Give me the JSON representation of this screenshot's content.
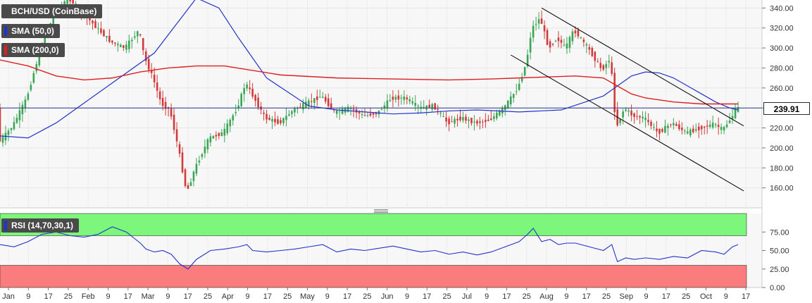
{
  "legend": {
    "title": "BCH/USD (CoinBase)",
    "sma50": "SMA (50,0)",
    "sma200": "SMA (200,0)",
    "rsi": "RSI (14,70,30,1)"
  },
  "colors": {
    "sma50": "#2233cc",
    "sma200": "#dd1f1f",
    "rsi_line": "#2233cc",
    "overbought_zone": "#7cf77c",
    "oversold_zone": "#fa7c7c",
    "up_candle": "#3aa655",
    "down_candle": "#d23a3a",
    "trendline": "#000000"
  },
  "last_price_label": "239.91",
  "chart_data": [
    {
      "type": "line",
      "panel": "price",
      "ylim": [
        140,
        348
      ],
      "y_ticks": [
        "340.00",
        "320.00",
        "300.00",
        "280.00",
        "260.00",
        "240.00",
        "220.00",
        "200.00",
        "180.00",
        "160.00"
      ],
      "x_ticks": [
        "Jan",
        "9",
        "17",
        "25",
        "Feb",
        "9",
        "17",
        "Mar",
        "9",
        "17",
        "25",
        "Apr",
        "9",
        "17",
        "25",
        "May",
        "9",
        "17",
        "25",
        "Jun",
        "9",
        "17",
        "25",
        "Jul",
        "9",
        "17",
        "25",
        "Aug",
        "9",
        "17",
        "25",
        "Sep",
        "9",
        "17",
        "25",
        "Oct",
        "9",
        "17"
      ],
      "last_price": 239.91,
      "series": [
        {
          "name": "SMA (50,0)",
          "x": [
            0,
            10,
            20,
            30,
            40,
            55,
            70,
            78,
            85,
            95,
            110,
            120,
            130,
            140,
            150,
            160,
            170,
            185,
            200,
            215,
            220,
            225,
            230,
            235,
            240,
            245,
            250,
            255,
            260,
            263
          ],
          "y": [
            212,
            210,
            225,
            245,
            265,
            295,
            350,
            340,
            310,
            270,
            242,
            238,
            236,
            234,
            235,
            237,
            238,
            236,
            238,
            252,
            262,
            272,
            276,
            275,
            270,
            262,
            254,
            246,
            240,
            238
          ]
        },
        {
          "name": "SMA (200,0)",
          "x": [
            0,
            10,
            20,
            30,
            40,
            50,
            60,
            70,
            80,
            100,
            120,
            140,
            160,
            175,
            185,
            195,
            205,
            215,
            220,
            225,
            230,
            240,
            250,
            263
          ],
          "y": [
            288,
            282,
            272,
            268,
            270,
            276,
            280,
            282,
            282,
            273,
            270,
            269,
            268,
            269,
            270,
            271,
            272,
            270,
            262,
            254,
            250,
            246,
            244,
            244
          ]
        },
        {
          "name": "Channel upper",
          "x": [
            193,
            265
          ],
          "y": [
            340,
            222
          ]
        },
        {
          "name": "Channel lower",
          "x": [
            182,
            265
          ],
          "y": [
            293,
            157
          ]
        }
      ],
      "price_path": {
        "x": [
          0,
          5,
          10,
          15,
          20,
          25,
          30,
          35,
          40,
          45,
          50,
          52,
          55,
          58,
          61,
          64,
          67,
          70,
          75,
          80,
          85,
          88,
          90,
          95,
          100,
          105,
          110,
          115,
          120,
          125,
          130,
          135,
          140,
          145,
          150,
          155,
          160,
          165,
          170,
          175,
          180,
          185,
          188,
          190,
          193,
          196,
          199,
          202,
          205,
          210,
          215,
          218,
          220,
          223,
          226,
          230,
          235,
          240,
          245,
          250,
          255,
          258,
          261,
          263
        ],
        "y": [
          205,
          222,
          250,
          300,
          335,
          350,
          335,
          320,
          306,
          300,
          318,
          290,
          270,
          244,
          238,
          200,
          155,
          180,
          210,
          215,
          240,
          265,
          255,
          230,
          225,
          238,
          245,
          252,
          235,
          240,
          232,
          235,
          250,
          250,
          240,
          242,
          225,
          230,
          225,
          228,
          240,
          260,
          285,
          320,
          330,
          300,
          310,
          300,
          318,
          300,
          278,
          290,
          220,
          240,
          232,
          230,
          215,
          225,
          215,
          220,
          224,
          218,
          230,
          239.91
        ]
      }
    },
    {
      "type": "line",
      "panel": "rsi",
      "ylim": [
        0,
        100
      ],
      "y_ticks": [
        "75.00",
        "50.00",
        "25.00",
        "0.00"
      ],
      "overbought": 70,
      "oversold": 30,
      "series": [
        {
          "name": "RSI (14,70,30,1)",
          "x": [
            0,
            5,
            10,
            15,
            20,
            25,
            30,
            35,
            40,
            45,
            50,
            52,
            55,
            58,
            61,
            64,
            67,
            70,
            75,
            80,
            85,
            88,
            90,
            95,
            100,
            105,
            110,
            115,
            120,
            125,
            130,
            135,
            140,
            145,
            150,
            155,
            160,
            165,
            170,
            175,
            180,
            185,
            188,
            190,
            193,
            196,
            199,
            202,
            205,
            210,
            215,
            218,
            220,
            223,
            226,
            230,
            235,
            240,
            245,
            250,
            255,
            258,
            261,
            263
          ],
          "y": [
            58,
            55,
            62,
            72,
            75,
            70,
            68,
            72,
            82,
            75,
            60,
            52,
            48,
            50,
            45,
            32,
            25,
            38,
            50,
            52,
            55,
            58,
            50,
            48,
            50,
            52,
            55,
            58,
            48,
            52,
            50,
            53,
            56,
            52,
            48,
            50,
            45,
            48,
            44,
            48,
            55,
            62,
            72,
            80,
            62,
            65,
            58,
            60,
            60,
            55,
            50,
            58,
            35,
            40,
            38,
            40,
            38,
            42,
            40,
            50,
            48,
            45,
            55,
            58
          ]
        }
      ]
    }
  ]
}
